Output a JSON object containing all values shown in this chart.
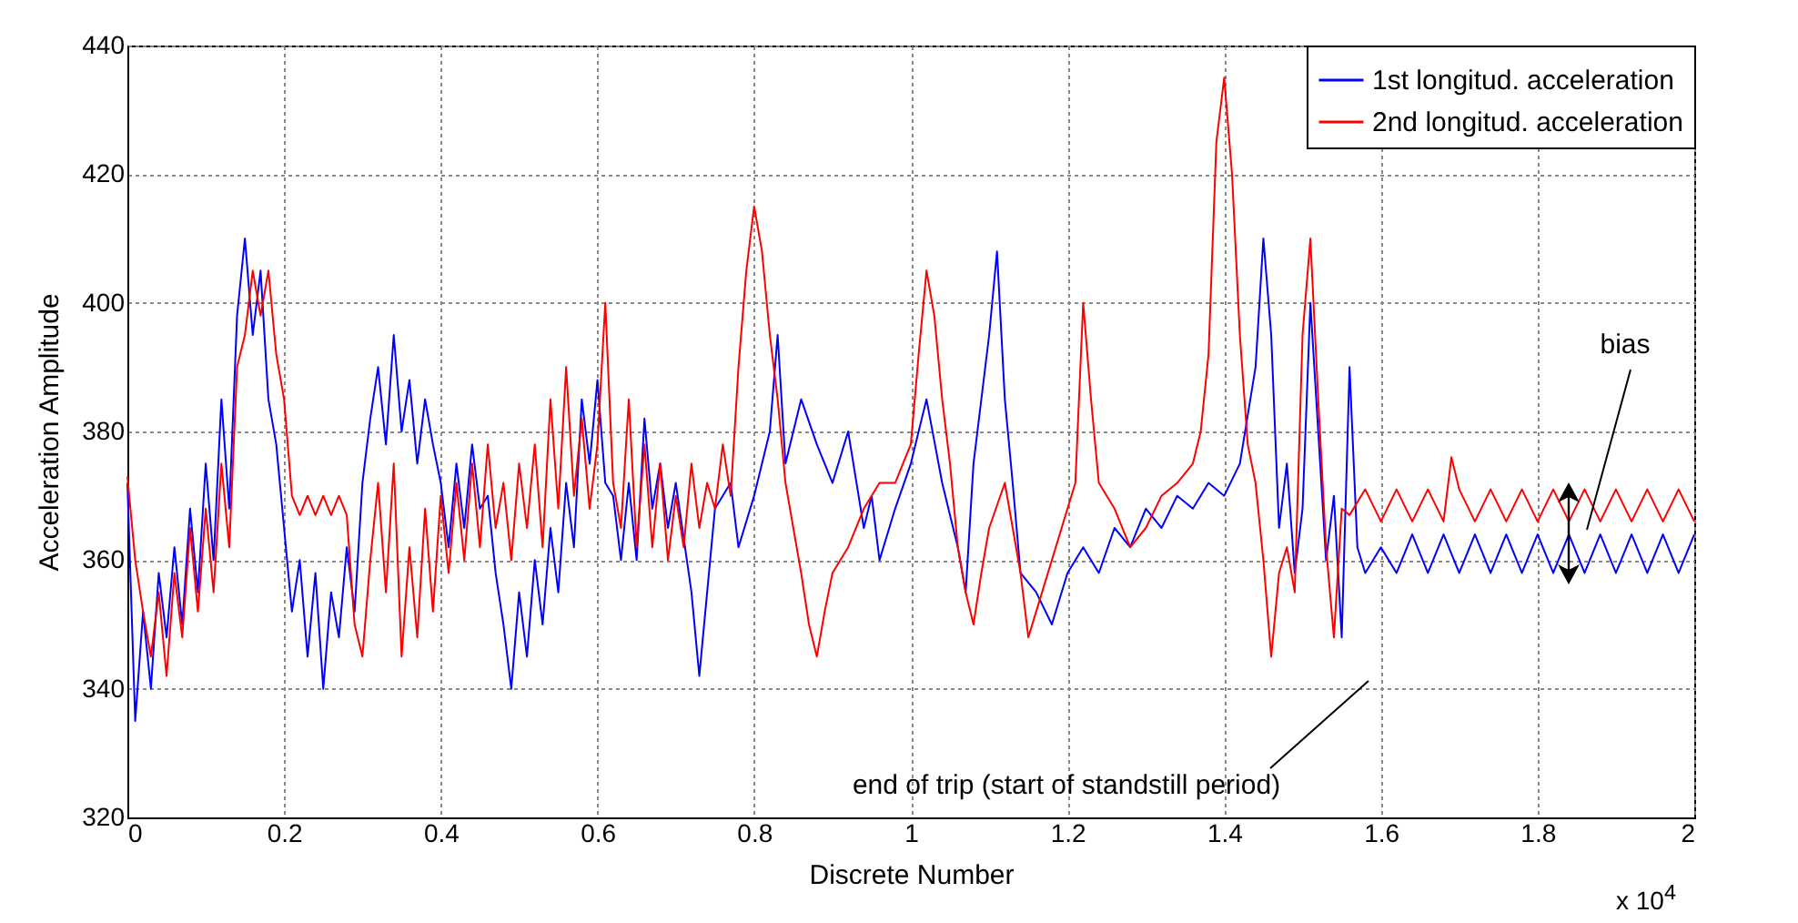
{
  "chart_data": {
    "type": "line",
    "xlabel": "Discrete Number",
    "ylabel": "Acceleration Amplitude",
    "xlim": [
      0,
      2
    ],
    "xticks": [
      0,
      0.2,
      0.4,
      0.6,
      0.8,
      1,
      1.2,
      1.4,
      1.6,
      1.8,
      2
    ],
    "ylim": [
      320,
      440
    ],
    "yticks": [
      320,
      340,
      360,
      380,
      400,
      420,
      440
    ],
    "grid": true,
    "legend": "top right",
    "line_style": "solid",
    "annotations": [
      "end of trip (start of standstill period)",
      "bias",
      "x 10$^{4}$"
    ],
    "series": [
      {
        "name": "1st longitud. acceleration",
        "color": "#0000ff",
        "x": [
          0,
          0.01,
          0.02,
          0.03,
          0.04,
          0.05,
          0.06,
          0.07,
          0.08,
          0.09,
          0.1,
          0.11,
          0.12,
          0.13,
          0.14,
          0.15,
          0.16,
          0.17,
          0.18,
          0.19,
          0.2,
          0.21,
          0.22,
          0.23,
          0.24,
          0.25,
          0.26,
          0.27,
          0.28,
          0.29,
          0.3,
          0.31,
          0.32,
          0.33,
          0.34,
          0.35,
          0.36,
          0.37,
          0.38,
          0.39,
          0.4,
          0.41,
          0.42,
          0.43,
          0.44,
          0.45,
          0.46,
          0.47,
          0.48,
          0.49,
          0.5,
          0.51,
          0.52,
          0.53,
          0.54,
          0.55,
          0.56,
          0.57,
          0.58,
          0.59,
          0.6,
          0.61,
          0.62,
          0.63,
          0.64,
          0.65,
          0.66,
          0.67,
          0.68,
          0.69,
          0.7,
          0.72,
          0.73,
          0.75,
          0.77,
          0.78,
          0.8,
          0.82,
          0.83,
          0.84,
          0.86,
          0.88,
          0.9,
          0.92,
          0.94,
          0.95,
          0.96,
          0.98,
          1,
          1.02,
          1.04,
          1.06,
          1.07,
          1.08,
          1.1,
          1.11,
          1.12,
          1.13,
          1.14,
          1.16,
          1.18,
          1.2,
          1.22,
          1.24,
          1.26,
          1.28,
          1.3,
          1.32,
          1.34,
          1.36,
          1.38,
          1.4,
          1.42,
          1.44,
          1.45,
          1.46,
          1.47,
          1.48,
          1.49,
          1.5,
          1.51,
          1.52,
          1.53,
          1.54,
          1.55,
          1.56,
          1.57,
          1.58,
          1.6,
          1.62,
          1.64,
          1.66,
          1.68,
          1.7,
          1.72,
          1.74,
          1.76,
          1.78,
          1.8,
          1.82,
          1.84,
          1.86,
          1.88,
          1.9,
          1.92,
          1.94,
          1.96,
          1.98,
          2
        ],
        "values": [
          372,
          335,
          352,
          340,
          358,
          348,
          362,
          350,
          368,
          355,
          375,
          360,
          385,
          368,
          398,
          410,
          395,
          405,
          385,
          378,
          365,
          352,
          360,
          345,
          358,
          340,
          355,
          348,
          362,
          352,
          372,
          382,
          390,
          378,
          395,
          380,
          388,
          375,
          385,
          378,
          372,
          362,
          375,
          365,
          378,
          368,
          370,
          358,
          350,
          340,
          355,
          345,
          360,
          350,
          365,
          355,
          372,
          362,
          385,
          375,
          388,
          372,
          370,
          360,
          372,
          360,
          382,
          368,
          375,
          365,
          372,
          355,
          342,
          368,
          372,
          362,
          370,
          380,
          395,
          375,
          385,
          378,
          372,
          380,
          365,
          370,
          360,
          368,
          375,
          385,
          372,
          362,
          355,
          375,
          395,
          408,
          385,
          372,
          358,
          355,
          350,
          358,
          362,
          358,
          365,
          362,
          368,
          365,
          370,
          368,
          372,
          370,
          375,
          390,
          410,
          395,
          365,
          375,
          358,
          368,
          400,
          380,
          360,
          370,
          348,
          390,
          362,
          358,
          362,
          358,
          364,
          358,
          364,
          358,
          364,
          358,
          364,
          358,
          364,
          358,
          364,
          358,
          364,
          358,
          364,
          358,
          364,
          358,
          364
        ]
      },
      {
        "name": "2nd longitud. acceleration",
        "color": "#ff0000",
        "x": [
          0,
          0.01,
          0.02,
          0.03,
          0.04,
          0.05,
          0.06,
          0.07,
          0.08,
          0.09,
          0.1,
          0.11,
          0.12,
          0.13,
          0.14,
          0.15,
          0.16,
          0.17,
          0.18,
          0.19,
          0.2,
          0.21,
          0.22,
          0.23,
          0.24,
          0.25,
          0.26,
          0.27,
          0.28,
          0.29,
          0.3,
          0.31,
          0.32,
          0.33,
          0.34,
          0.35,
          0.36,
          0.37,
          0.38,
          0.39,
          0.4,
          0.41,
          0.42,
          0.43,
          0.44,
          0.45,
          0.46,
          0.47,
          0.48,
          0.49,
          0.5,
          0.51,
          0.52,
          0.53,
          0.54,
          0.55,
          0.56,
          0.57,
          0.58,
          0.59,
          0.6,
          0.61,
          0.62,
          0.63,
          0.64,
          0.65,
          0.66,
          0.67,
          0.68,
          0.69,
          0.7,
          0.71,
          0.72,
          0.73,
          0.74,
          0.75,
          0.76,
          0.77,
          0.78,
          0.79,
          0.8,
          0.81,
          0.82,
          0.83,
          0.84,
          0.85,
          0.86,
          0.87,
          0.88,
          0.89,
          0.9,
          0.92,
          0.94,
          0.96,
          0.98,
          1,
          1.01,
          1.02,
          1.03,
          1.04,
          1.05,
          1.06,
          1.07,
          1.08,
          1.09,
          1.1,
          1.12,
          1.14,
          1.15,
          1.16,
          1.18,
          1.2,
          1.21,
          1.22,
          1.23,
          1.24,
          1.26,
          1.28,
          1.3,
          1.32,
          1.34,
          1.36,
          1.37,
          1.38,
          1.39,
          1.4,
          1.41,
          1.42,
          1.43,
          1.44,
          1.45,
          1.46,
          1.47,
          1.48,
          1.49,
          1.5,
          1.51,
          1.52,
          1.53,
          1.54,
          1.55,
          1.56,
          1.58,
          1.6,
          1.62,
          1.64,
          1.66,
          1.68,
          1.69,
          1.7,
          1.72,
          1.74,
          1.76,
          1.78,
          1.8,
          1.82,
          1.84,
          1.86,
          1.88,
          1.9,
          1.92,
          1.94,
          1.96,
          1.98,
          2
        ],
        "values": [
          373,
          360,
          352,
          345,
          355,
          342,
          358,
          348,
          365,
          352,
          368,
          355,
          375,
          362,
          390,
          395,
          405,
          398,
          405,
          392,
          385,
          370,
          367,
          370,
          367,
          370,
          367,
          370,
          367,
          350,
          345,
          360,
          372,
          355,
          375,
          345,
          362,
          348,
          368,
          352,
          370,
          358,
          372,
          360,
          375,
          362,
          378,
          365,
          372,
          360,
          375,
          365,
          378,
          362,
          385,
          368,
          390,
          370,
          382,
          368,
          378,
          400,
          372,
          365,
          385,
          362,
          378,
          362,
          375,
          360,
          370,
          362,
          375,
          365,
          372,
          368,
          378,
          370,
          390,
          405,
          415,
          408,
          395,
          385,
          372,
          365,
          358,
          350,
          345,
          352,
          358,
          362,
          368,
          372,
          372,
          378,
          392,
          405,
          398,
          385,
          375,
          362,
          355,
          350,
          358,
          365,
          372,
          358,
          348,
          352,
          360,
          368,
          372,
          400,
          385,
          372,
          368,
          362,
          365,
          370,
          372,
          375,
          380,
          392,
          425,
          435,
          420,
          395,
          378,
          372,
          360,
          345,
          358,
          362,
          355,
          395,
          410,
          385,
          362,
          348,
          368,
          367,
          371,
          366,
          371,
          366,
          371,
          366,
          376,
          371,
          366,
          371,
          366,
          371,
          366,
          371,
          366,
          371,
          366,
          371,
          366,
          371,
          366,
          371,
          366
        ]
      }
    ]
  }
}
